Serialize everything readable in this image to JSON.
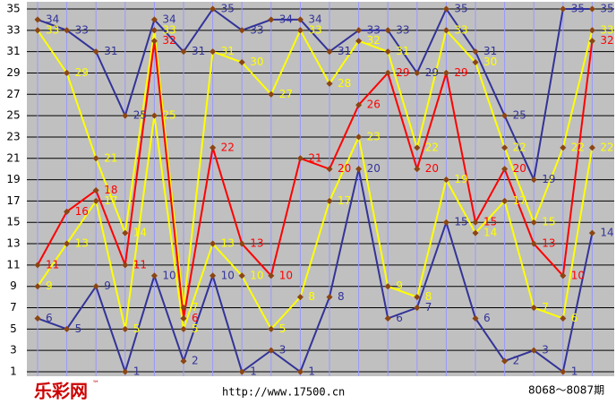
{
  "chart_data": {
    "type": "line",
    "categories": [
      null,
      null,
      null,
      null,
      null,
      null,
      null,
      null,
      null,
      null,
      null,
      null,
      null,
      null,
      null,
      null,
      null,
      null,
      null,
      null
    ],
    "series": [
      {
        "color": "#333399",
        "values": [
          34,
          33,
          31,
          25,
          34,
          31,
          35,
          33,
          34,
          34,
          31,
          33,
          33,
          29,
          35,
          31,
          25,
          19,
          35,
          35
        ]
      },
      {
        "color": "#ffff00",
        "values": [
          33,
          29,
          21,
          14,
          33,
          7,
          31,
          30,
          27,
          33,
          28,
          32,
          31,
          22,
          33,
          30,
          22,
          15,
          22,
          33
        ]
      },
      {
        "color": "#ff0000",
        "values": [
          11,
          16,
          18,
          11,
          32,
          6,
          22,
          13,
          10,
          21,
          20,
          26,
          29,
          20,
          29,
          15,
          20,
          13,
          10,
          32
        ]
      },
      {
        "color": "#ffff00",
        "values": [
          9,
          13,
          17,
          5,
          25,
          5,
          13,
          10,
          5,
          8,
          17,
          23,
          9,
          8,
          19,
          14,
          17,
          7,
          6,
          22
        ]
      },
      {
        "color": "#333399",
        "values": [
          6,
          5,
          9,
          1,
          10,
          2,
          10,
          1,
          3,
          1,
          8,
          20,
          6,
          7,
          15,
          6,
          2,
          3,
          1,
          14
        ]
      }
    ],
    "ylim": [
      1,
      35
    ],
    "yticks": [
      1,
      3,
      5,
      7,
      9,
      11,
      13,
      15,
      17,
      19,
      21,
      23,
      25,
      27,
      29,
      31,
      33,
      35
    ],
    "grid": true,
    "marker_color": "#8b4513",
    "logo": "乐彩网",
    "trademark": "™",
    "url": "http://www.17500.cn",
    "period": "8068～8087期"
  }
}
